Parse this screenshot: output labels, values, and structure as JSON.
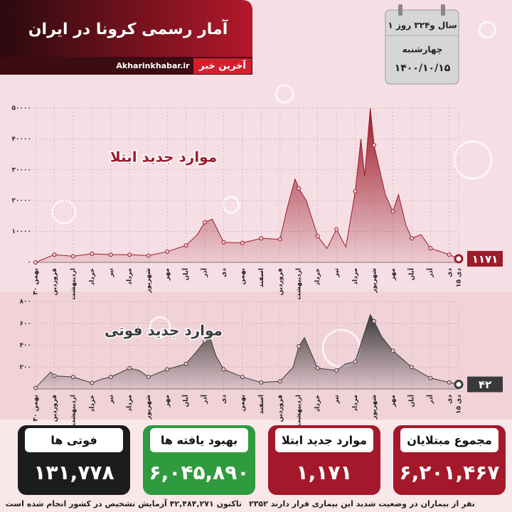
{
  "header": {
    "title": "آمار رسمی کرونا در ایران",
    "site": "Akharinkhabar.ir",
    "logo": "آخرین خبر"
  },
  "calendar": {
    "elapsed": "۱ سال و۳۲۴ روز",
    "weekday": "چهارشنبه",
    "date": "۱۴۰۰/۱۰/۱۵"
  },
  "chart_data": [
    {
      "type": "area",
      "title": "موارد جدید ابتلا",
      "color": "#9b1b2b",
      "grid": true,
      "xlim": [
        0,
        22.5
      ],
      "xticks": [
        {
          "value": 0,
          "label": "۳۰ بهمن"
        },
        {
          "value": 1,
          "label": "فروردین"
        },
        {
          "value": 2,
          "label": "اردیبهشت"
        },
        {
          "value": 3,
          "label": "خرداد"
        },
        {
          "value": 4,
          "label": "تیر"
        },
        {
          "value": 5,
          "label": "مرداد"
        },
        {
          "value": 6,
          "label": "شهریور"
        },
        {
          "value": 7,
          "label": "مهر"
        },
        {
          "value": 8,
          "label": "آبان"
        },
        {
          "value": 9,
          "label": "آذر"
        },
        {
          "value": 10,
          "label": "دی"
        },
        {
          "value": 11,
          "label": "بهمن"
        },
        {
          "value": 12,
          "label": "اسفند"
        },
        {
          "value": 13,
          "label": "فروردین"
        },
        {
          "value": 14,
          "label": "اردیبهشت"
        },
        {
          "value": 15,
          "label": "خرداد"
        },
        {
          "value": 16,
          "label": "تیر"
        },
        {
          "value": 17,
          "label": "مرداد"
        },
        {
          "value": 18,
          "label": "شهریور"
        },
        {
          "value": 19,
          "label": "مهر"
        },
        {
          "value": 20,
          "label": "آبان"
        },
        {
          "value": 21,
          "label": "آذر"
        },
        {
          "value": 22,
          "label": "دی"
        },
        {
          "value": 22.5,
          "label": "۱۵ دی"
        }
      ],
      "ylim": [
        0,
        50000
      ],
      "yticks": [
        {
          "value": 0,
          "label": "۰"
        },
        {
          "value": 10000,
          "label": "۱۰۰۰۰"
        },
        {
          "value": 20000,
          "label": "۲۰۰۰۰"
        },
        {
          "value": 30000,
          "label": "۳۰۰۰۰"
        },
        {
          "value": 40000,
          "label": "۴۰۰۰۰"
        },
        {
          "value": 50000,
          "label": "۵۰۰۰۰"
        }
      ],
      "x": [
        0,
        1,
        2,
        3,
        4,
        5,
        6,
        7,
        8,
        8.6,
        9,
        9.4,
        10,
        11,
        12,
        13,
        13.4,
        13.8,
        14,
        14.4,
        15,
        15.5,
        16,
        16.5,
        17,
        17.3,
        17.5,
        17.8,
        18,
        18.3,
        18.6,
        19,
        19.3,
        19.7,
        20,
        20.5,
        21,
        22,
        22.5
      ],
      "values": [
        0,
        2500,
        2000,
        2800,
        2500,
        2500,
        2200,
        3500,
        5500,
        9000,
        13000,
        14000,
        6500,
        6300,
        7800,
        7500,
        18000,
        27000,
        24000,
        20000,
        8500,
        4500,
        10700,
        5000,
        23000,
        40000,
        28000,
        50000,
        38000,
        30000,
        22000,
        16500,
        22000,
        12000,
        7800,
        9000,
        4600,
        2500,
        1171
      ],
      "value_labels": [
        null,
        null,
        null,
        null,
        null,
        null,
        null,
        null,
        null,
        null,
        null,
        null,
        null,
        null,
        null,
        null,
        null,
        null,
        null,
        null,
        null,
        null,
        null,
        null,
        null,
        null,
        null,
        null,
        null,
        null,
        null,
        null,
        null,
        null,
        null,
        null,
        null,
        null,
        "۱۱۷۱"
      ]
    },
    {
      "type": "area",
      "title": "موارد جدید فوتی",
      "color": "#3a3a3a",
      "grid": true,
      "xlim": [
        0,
        22.5
      ],
      "xticks": [
        {
          "value": 0,
          "label": "۳۰ بهمن"
        },
        {
          "value": 1,
          "label": "فروردین"
        },
        {
          "value": 2,
          "label": "اردیبهشت"
        },
        {
          "value": 3,
          "label": "خرداد"
        },
        {
          "value": 4,
          "label": "تیر"
        },
        {
          "value": 5,
          "label": "مرداد"
        },
        {
          "value": 6,
          "label": "شهریور"
        },
        {
          "value": 7,
          "label": "مهر"
        },
        {
          "value": 8,
          "label": "آبان"
        },
        {
          "value": 9,
          "label": "آذر"
        },
        {
          "value": 10,
          "label": "دی"
        },
        {
          "value": 11,
          "label": "بهمن"
        },
        {
          "value": 12,
          "label": "اسفند"
        },
        {
          "value": 13,
          "label": "فروردین"
        },
        {
          "value": 14,
          "label": "اردیبهشت"
        },
        {
          "value": 15,
          "label": "خرداد"
        },
        {
          "value": 16,
          "label": "تیر"
        },
        {
          "value": 17,
          "label": "مرداد"
        },
        {
          "value": 18,
          "label": "شهریور"
        },
        {
          "value": 19,
          "label": "مهر"
        },
        {
          "value": 20,
          "label": "آبان"
        },
        {
          "value": 21,
          "label": "آذر"
        },
        {
          "value": 22,
          "label": "دی"
        },
        {
          "value": 22.5,
          "label": "۱۵ دی"
        }
      ],
      "ylim": [
        0,
        800
      ],
      "yticks": [
        {
          "value": 200,
          "label": "۲۰۰"
        },
        {
          "value": 400,
          "label": "۴۰۰"
        },
        {
          "value": 600,
          "label": "۶۰۰"
        },
        {
          "value": 800,
          "label": "۸۰۰"
        }
      ],
      "x": [
        0,
        0.8,
        1,
        2,
        3,
        3.5,
        4,
        5,
        5.5,
        6,
        7,
        8,
        8.6,
        9,
        9.2,
        9.6,
        10,
        11,
        12,
        13,
        13.7,
        14,
        14.3,
        15,
        16,
        16.5,
        17,
        17.5,
        17.8,
        18,
        18.4,
        19,
        20,
        21,
        22,
        22.5
      ],
      "values": [
        10,
        155,
        120,
        110,
        55,
        90,
        110,
        190,
        170,
        110,
        180,
        230,
        350,
        440,
        510,
        300,
        180,
        110,
        60,
        70,
        200,
        390,
        470,
        190,
        170,
        230,
        250,
        520,
        680,
        620,
        480,
        350,
        200,
        100,
        60,
        42
      ],
      "value_labels": [
        null,
        null,
        null,
        null,
        null,
        null,
        null,
        null,
        null,
        null,
        null,
        null,
        null,
        null,
        null,
        null,
        null,
        null,
        null,
        null,
        null,
        null,
        null,
        null,
        null,
        null,
        null,
        null,
        null,
        null,
        null,
        null,
        null,
        null,
        null,
        "۴۲"
      ]
    }
  ],
  "stats": [
    {
      "label": "مجموع مبتلایان",
      "value": "۶,۲۰۱,۴۶۷",
      "color": "#a3182a"
    },
    {
      "label": "موارد جدید ابتلا",
      "value": "۱,۱۷۱",
      "color": "#a3182a"
    },
    {
      "label": "بهبود یافته ها",
      "value": "۶,۰۴۵,۸۹۰",
      "color": "#2f9a3e"
    },
    {
      "label": "فوتی ها",
      "value": "۱۳۱,۷۷۸",
      "color": "#1c1c1c"
    }
  ],
  "footer": {
    "severe": "۲۳۵۲ نفر از بیماران در وضعیت شدید این بیماری قرار دارند",
    "tests": "تاکنون ۴۲,۴۸۴,۲۷۱ آزمایش تشخیص در کشور انجام شده است"
  }
}
